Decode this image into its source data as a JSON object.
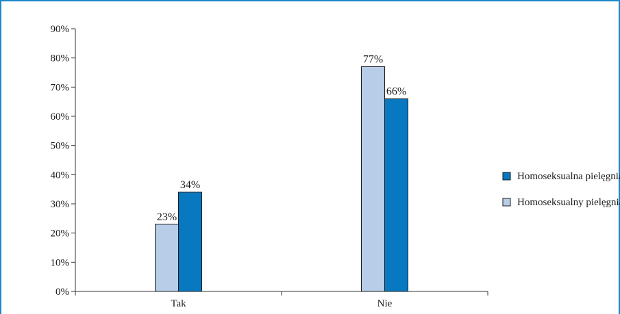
{
  "chart_data": {
    "type": "bar",
    "categories": [
      "Tak",
      "Nie"
    ],
    "series": [
      {
        "name": "Homoseksualny pielęgniarz",
        "values": [
          23,
          77
        ],
        "color": "#b8cde8",
        "labels": [
          "23%",
          "77%"
        ]
      },
      {
        "name": "Homoseksualna pielęgniarka",
        "values": [
          34,
          66
        ],
        "color": "#0878c0",
        "labels": [
          "34%",
          "66%"
        ]
      }
    ],
    "yticks": [
      "0%",
      "10%",
      "20%",
      "30%",
      "40%",
      "50%",
      "60%",
      "70%",
      "80%",
      "90%"
    ],
    "ylim": [
      0,
      90
    ],
    "grid": false,
    "legend_position": "right",
    "legend": [
      "Homoseksualna pielęgniarka",
      "Homoseksualny pielęgniarz"
    ],
    "title": "",
    "xlabel": "",
    "ylabel": ""
  },
  "frame_color": "#1a86c8"
}
